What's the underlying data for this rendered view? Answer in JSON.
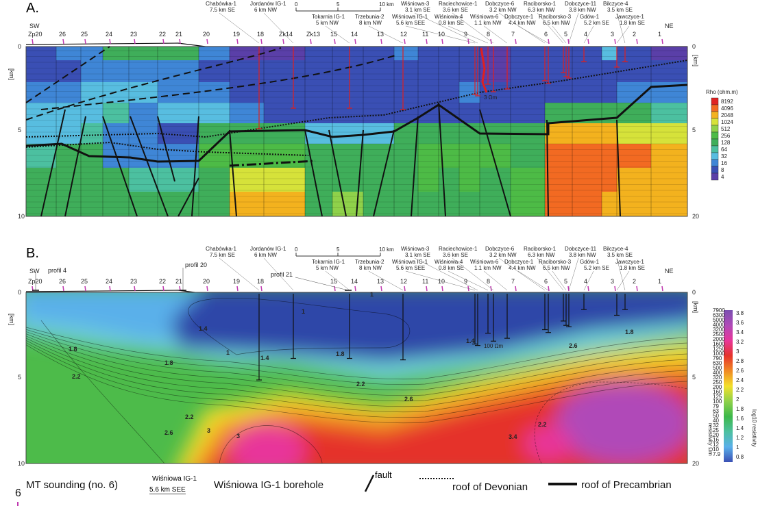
{
  "panelA": {
    "letter": "A.",
    "sw": "SW",
    "ne": "NE",
    "scale_ticks": [
      "0",
      "5",
      "10 km"
    ],
    "depth_left": [
      "0",
      "5",
      "10"
    ],
    "depth_right": [
      "0",
      "5",
      "20"
    ],
    "unit": "[km]",
    "stations": [
      "Zp20",
      "26",
      "25",
      "24",
      "23",
      "22",
      "21",
      "20",
      "19",
      "18",
      "Zk14",
      "Zk13",
      "15",
      "14",
      "13",
      "12",
      "11",
      "10",
      "9",
      "8",
      "7",
      "6",
      "5",
      "4",
      "3",
      "2",
      "1"
    ],
    "colorbar_title": "Rho (ohm.m)",
    "colorbar_labels": [
      "8192",
      "4096",
      "2048",
      "1024",
      "512",
      "256",
      "128",
      "64",
      "32",
      "16",
      "8",
      "4"
    ],
    "colorbar_colors": [
      "#e02424",
      "#f26a22",
      "#f3b21e",
      "#d6e23a",
      "#8fd14a",
      "#4dbb46",
      "#3fae5a",
      "#4cc0a0",
      "#58bde0",
      "#3f86d6",
      "#3a4fb4",
      "#5a3fa8"
    ],
    "well_note": "3 Ωm"
  },
  "panelB": {
    "letter": "B.",
    "sw": "SW",
    "ne": "NE",
    "scale_ticks": [
      "0",
      "5",
      "10 km"
    ],
    "depth_left": [
      "0",
      "5",
      "10"
    ],
    "depth_right": [
      "0",
      "5",
      "20"
    ],
    "unit": "[km]",
    "profiles": [
      "profil 4",
      "profil 20",
      "profil 21"
    ],
    "stations": [
      "Zp20",
      "26",
      "25",
      "24",
      "23",
      "22",
      "21",
      "20",
      "19",
      "18",
      "15",
      "14",
      "13",
      "12",
      "11",
      "10",
      "9",
      "8",
      "7",
      "6",
      "5",
      "4",
      "3",
      "2",
      "1"
    ],
    "contour_labels": [
      "1.4",
      "1",
      "1",
      "1",
      "1.8",
      "2.2",
      "1.8",
      "1.4",
      "1.8",
      "1.4",
      "2.2",
      "2.6",
      "2.2",
      "2.6",
      "3",
      "3",
      "3.4",
      "2.2",
      "2.6",
      "1.8"
    ],
    "colorbar_left_label": "resistivity Ωm",
    "colorbar_right_label": "log10 resistivity",
    "colorbar_log_labels": [
      "3.8",
      "3.6",
      "3.4",
      "3.2",
      "3",
      "2.8",
      "2.6",
      "2.4",
      "2.2",
      "2",
      "1.8",
      "1.6",
      "1.4",
      "1.2",
      "1",
      "0.8"
    ],
    "colorbar_ohm_labels": [
      "7900",
      "6300",
      "5000",
      "4000",
      "3200",
      "2500",
      "2000",
      "1600",
      "1250",
      "1000",
      "790",
      "630",
      "500",
      "400",
      "320",
      "250",
      "200",
      "160",
      "125",
      "100",
      "79",
      "63",
      "50",
      "40",
      "32",
      "25",
      "20",
      "16",
      "12",
      "10",
      "7.9"
    ],
    "well_note": "100 Ωm"
  },
  "boreholes": [
    {
      "name": "Chabówka-1",
      "dist": "7.5 km  SE"
    },
    {
      "name": "Jordanów IG-1",
      "dist": "6 km  NW"
    },
    {
      "name": "Tokarnia IG-1",
      "dist": "5 km  NW"
    },
    {
      "name": "Trzebunia-2",
      "dist": "8 km  NW"
    },
    {
      "name": "Wiśniowa IG-1",
      "dist": "5.6 km  SEE"
    },
    {
      "name": "Wiśniowa-3",
      "dist": "3.1 km  SE"
    },
    {
      "name": "Wiśniowa-4",
      "dist": "0.8 km  SE"
    },
    {
      "name": "Raciechowice-1",
      "dist": "3.6 km  SE"
    },
    {
      "name": "Wiśniowa-6",
      "dist": "1.1 km  NW"
    },
    {
      "name": "Dobczyce-6",
      "dist": "3.2 km  NW"
    },
    {
      "name": "Dobczyce-1",
      "dist": "4.4 km  NW"
    },
    {
      "name": "Raciborsko-1",
      "dist": "6.3 km  NW"
    },
    {
      "name": "Raciborsko-3",
      "dist": "6.5 km  NW"
    },
    {
      "name": "Dobczyce-11",
      "dist": "3.8 km  NW"
    },
    {
      "name": "Gdów-1",
      "dist": "5.2 km  SE"
    },
    {
      "name": "Bilczyce-4",
      "dist": "3.5 km  SE"
    },
    {
      "name": "Jawczyce-1",
      "dist": "1.8 km  SE"
    }
  ],
  "legend": {
    "mt_number": "6",
    "mt_label": "MT sounding (no. 6)",
    "borehole_sample_name": "Wiśniowa IG-1",
    "borehole_sample_dist": "5.6 km  SEE",
    "borehole_label": "Wiśniowa IG-1 borehole",
    "fault_label": "fault",
    "devonian_label": "roof of Devonian",
    "precambrian_label": "roof of Precambrian"
  }
}
